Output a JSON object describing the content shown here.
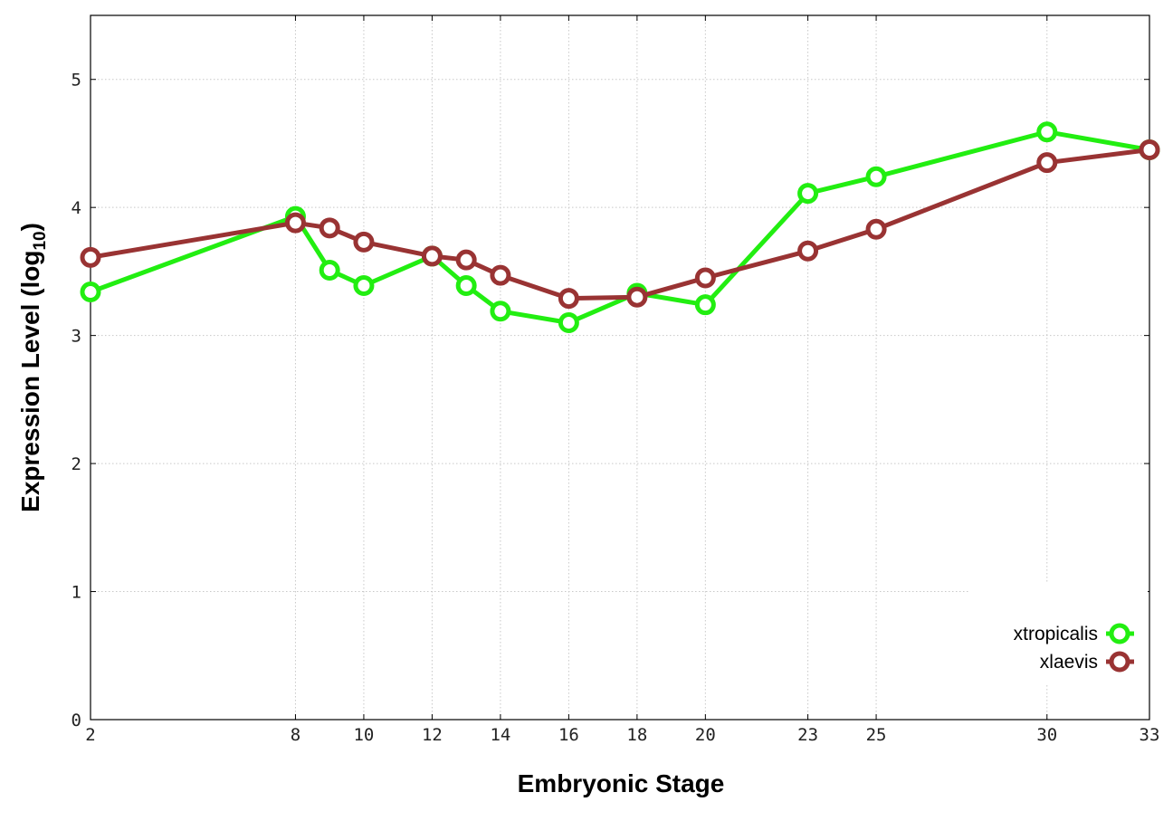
{
  "chart_data": {
    "type": "line",
    "xlabel": "Embryonic Stage",
    "ylabel": {
      "main": "Expression Level (log",
      "sub": "10",
      "close": ")"
    },
    "x": [
      2,
      8,
      9,
      10,
      12,
      13,
      14,
      16,
      18,
      20,
      23,
      25,
      30,
      33
    ],
    "x_tick_labels": [
      "2",
      "8",
      "10",
      "12",
      "14",
      "16",
      "18",
      "20",
      "23",
      "25",
      "30",
      "33"
    ],
    "y_ticks": [
      0,
      1,
      2,
      3,
      4,
      5
    ],
    "y_tick_labels": [
      "0",
      "1",
      "2",
      "3",
      "4",
      "5"
    ],
    "ylim": [
      0,
      5.5
    ],
    "grid": true,
    "legend_position": "bottom-right",
    "series": [
      {
        "name": "xtropicalis",
        "color": "#22ee11",
        "values": [
          3.34,
          3.93,
          3.51,
          3.39,
          3.62,
          3.39,
          3.19,
          3.1,
          3.33,
          3.24,
          4.11,
          4.24,
          4.59,
          4.45
        ]
      },
      {
        "name": "xlaevis",
        "color": "#993333",
        "values": [
          3.61,
          3.88,
          3.84,
          3.73,
          3.62,
          3.59,
          3.47,
          3.29,
          3.3,
          3.45,
          3.66,
          3.83,
          4.35,
          4.45
        ]
      }
    ]
  }
}
